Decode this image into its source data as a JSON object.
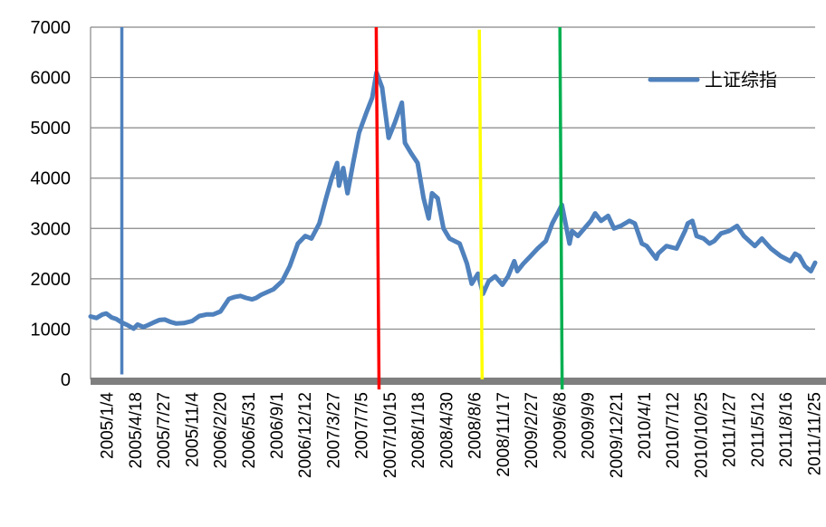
{
  "chart_data": {
    "type": "line",
    "title": "",
    "xlabel": "",
    "ylabel": "",
    "ylim": [
      0,
      7000
    ],
    "yticks": [
      0,
      1000,
      2000,
      3000,
      4000,
      5000,
      6000,
      7000
    ],
    "x_range": [
      "2005-01-04",
      "2012-01-20"
    ],
    "xtick_labels": [
      "2005/1/4",
      "2005/4/18",
      "2005/7/27",
      "2005/11/4",
      "2006/2/20",
      "2006/5/31",
      "2006/9/1",
      "2006/12/12",
      "2007/3/27",
      "2007/7/5",
      "2007/10/15",
      "2008/1/18",
      "2008/4/30",
      "2008/8/6",
      "2008/11/17",
      "2009/2/27",
      "2009/6/8",
      "2009/9/9",
      "2009/12/21",
      "2010/4/1",
      "2010/7/12",
      "2010/10/25",
      "2011/1/27",
      "2011/5/12",
      "2011/8/16",
      "2011/11/25"
    ],
    "grid": "horizontal",
    "legend_position": "top-right",
    "series": [
      {
        "name": "上证综指",
        "color": "#4F81BD",
        "points": [
          [
            "2005-01-04",
            1250
          ],
          [
            "2005-01-25",
            1220
          ],
          [
            "2005-02-15",
            1290
          ],
          [
            "2005-03-01",
            1310
          ],
          [
            "2005-03-20",
            1230
          ],
          [
            "2005-04-05",
            1200
          ],
          [
            "2005-04-25",
            1130
          ],
          [
            "2005-05-15",
            1080
          ],
          [
            "2005-06-06",
            1010
          ],
          [
            "2005-06-20",
            1090
          ],
          [
            "2005-07-10",
            1040
          ],
          [
            "2005-07-27",
            1080
          ],
          [
            "2005-08-15",
            1130
          ],
          [
            "2005-09-05",
            1180
          ],
          [
            "2005-09-25",
            1190
          ],
          [
            "2005-10-15",
            1140
          ],
          [
            "2005-11-04",
            1110
          ],
          [
            "2005-12-01",
            1120
          ],
          [
            "2005-12-31",
            1160
          ],
          [
            "2006-01-25",
            1260
          ],
          [
            "2006-02-20",
            1290
          ],
          [
            "2006-03-15",
            1290
          ],
          [
            "2006-04-10",
            1350
          ],
          [
            "2006-05-10",
            1600
          ],
          [
            "2006-05-31",
            1640
          ],
          [
            "2006-06-20",
            1660
          ],
          [
            "2006-07-10",
            1620
          ],
          [
            "2006-07-31",
            1590
          ],
          [
            "2006-08-15",
            1620
          ],
          [
            "2006-09-01",
            1680
          ],
          [
            "2006-10-15",
            1790
          ],
          [
            "2006-11-15",
            1950
          ],
          [
            "2006-12-12",
            2250
          ],
          [
            "2007-01-10",
            2700
          ],
          [
            "2007-02-05",
            2850
          ],
          [
            "2007-02-27",
            2800
          ],
          [
            "2007-03-27",
            3100
          ],
          [
            "2007-04-20",
            3600
          ],
          [
            "2007-05-10",
            4000
          ],
          [
            "2007-05-29",
            4300
          ],
          [
            "2007-06-05",
            3850
          ],
          [
            "2007-06-20",
            4200
          ],
          [
            "2007-07-05",
            3700
          ],
          [
            "2007-07-25",
            4300
          ],
          [
            "2007-08-15",
            4900
          ],
          [
            "2007-09-10",
            5300
          ],
          [
            "2007-10-01",
            5600
          ],
          [
            "2007-10-16",
            6100
          ],
          [
            "2007-11-05",
            5800
          ],
          [
            "2007-11-28",
            4800
          ],
          [
            "2007-12-20",
            5100
          ],
          [
            "2008-01-14",
            5500
          ],
          [
            "2008-01-25",
            4700
          ],
          [
            "2008-02-15",
            4500
          ],
          [
            "2008-03-10",
            4300
          ],
          [
            "2008-03-31",
            3600
          ],
          [
            "2008-04-18",
            3200
          ],
          [
            "2008-04-30",
            3700
          ],
          [
            "2008-05-20",
            3600
          ],
          [
            "2008-06-10",
            3000
          ],
          [
            "2008-07-01",
            2800
          ],
          [
            "2008-08-06",
            2700
          ],
          [
            "2008-09-01",
            2300
          ],
          [
            "2008-09-18",
            1900
          ],
          [
            "2008-10-10",
            2100
          ],
          [
            "2008-10-28",
            1700
          ],
          [
            "2008-11-17",
            1950
          ],
          [
            "2008-12-10",
            2050
          ],
          [
            "2009-01-05",
            1880
          ],
          [
            "2009-01-25",
            2050
          ],
          [
            "2009-02-16",
            2350
          ],
          [
            "2009-02-27",
            2150
          ],
          [
            "2009-03-20",
            2300
          ],
          [
            "2009-04-15",
            2450
          ],
          [
            "2009-05-10",
            2600
          ],
          [
            "2009-06-08",
            2750
          ],
          [
            "2009-07-01",
            3100
          ],
          [
            "2009-07-20",
            3300
          ],
          [
            "2009-08-04",
            3470
          ],
          [
            "2009-08-31",
            2700
          ],
          [
            "2009-09-09",
            2950
          ],
          [
            "2009-09-30",
            2850
          ],
          [
            "2009-11-15",
            3150
          ],
          [
            "2009-11-30",
            3300
          ],
          [
            "2009-12-21",
            3150
          ],
          [
            "2010-01-15",
            3250
          ],
          [
            "2010-02-05",
            3000
          ],
          [
            "2010-03-01",
            3050
          ],
          [
            "2010-04-01",
            3150
          ],
          [
            "2010-04-20",
            3100
          ],
          [
            "2010-05-15",
            2700
          ],
          [
            "2010-06-01",
            2650
          ],
          [
            "2010-07-05",
            2400
          ],
          [
            "2010-07-12",
            2500
          ],
          [
            "2010-08-10",
            2650
          ],
          [
            "2010-09-15",
            2600
          ],
          [
            "2010-10-15",
            2950
          ],
          [
            "2010-10-25",
            3100
          ],
          [
            "2010-11-10",
            3150
          ],
          [
            "2010-11-25",
            2850
          ],
          [
            "2010-12-20",
            2800
          ],
          [
            "2011-01-10",
            2700
          ],
          [
            "2011-01-27",
            2750
          ],
          [
            "2011-02-20",
            2900
          ],
          [
            "2011-03-20",
            2950
          ],
          [
            "2011-04-18",
            3050
          ],
          [
            "2011-05-12",
            2850
          ],
          [
            "2011-06-20",
            2650
          ],
          [
            "2011-07-15",
            2800
          ],
          [
            "2011-08-16",
            2600
          ],
          [
            "2011-09-20",
            2450
          ],
          [
            "2011-10-24",
            2350
          ],
          [
            "2011-11-10",
            2500
          ],
          [
            "2011-11-25",
            2450
          ],
          [
            "2011-12-15",
            2250
          ],
          [
            "2012-01-05",
            2150
          ],
          [
            "2012-01-20",
            2320
          ]
        ]
      }
    ],
    "annotations": [
      {
        "type": "vertical-line",
        "color": "#4F81BD",
        "x_top": "2005-04-25",
        "x_bottom": "2005-04-25",
        "y_top": 7000,
        "y_bottom": 100
      },
      {
        "type": "vertical-line",
        "color": "#FF0000",
        "x_top": "2007-10-15",
        "x_bottom": "2007-10-25",
        "y_top": 7000,
        "y_bottom": -200
      },
      {
        "type": "vertical-line",
        "color": "#FFFF00",
        "x_top": "2008-10-15",
        "x_bottom": "2008-10-25",
        "y_top": 6950,
        "y_bottom": 0
      },
      {
        "type": "vertical-line",
        "color": "#00B050",
        "x_top": "2009-07-28",
        "x_bottom": "2009-08-05",
        "y_top": 7000,
        "y_bottom": -200
      }
    ]
  }
}
